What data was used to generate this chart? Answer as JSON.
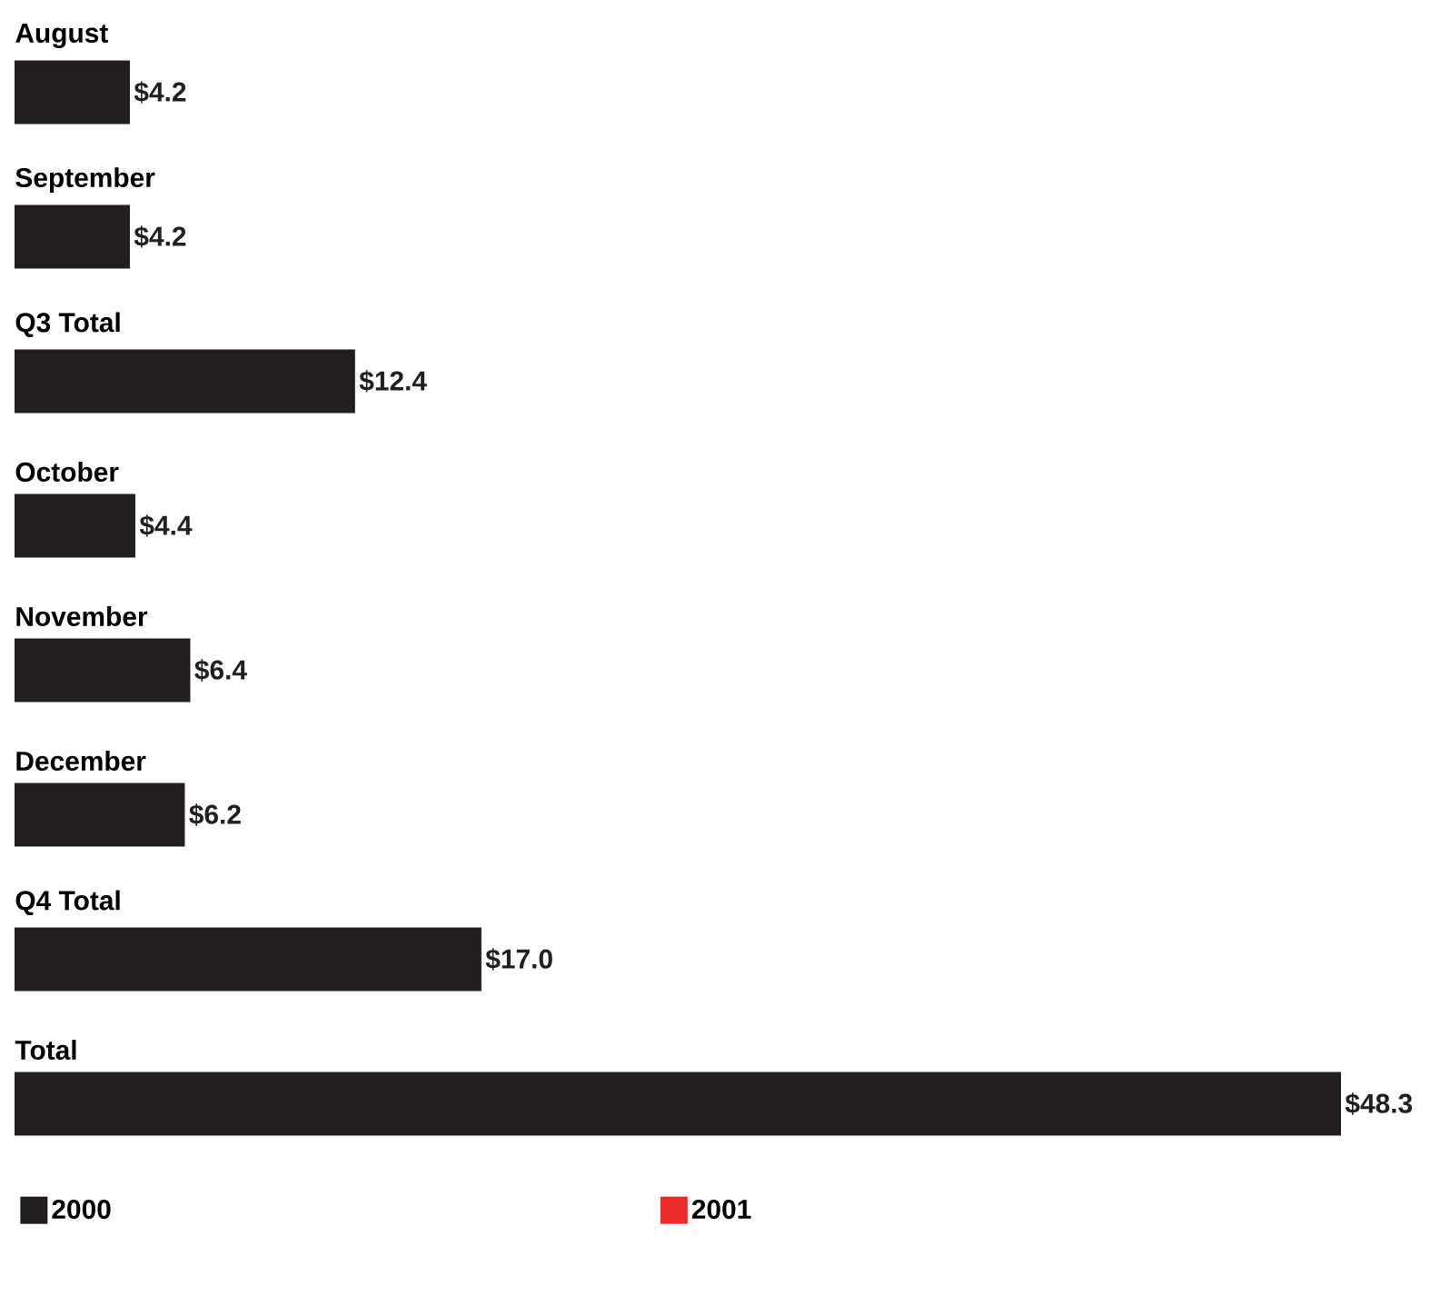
{
  "chart_data": {
    "type": "bar",
    "orientation": "horizontal",
    "categories": [
      "August",
      "September",
      "Q3 Total",
      "October",
      "November",
      "December",
      "Q4 Total",
      "Total"
    ],
    "series": [
      {
        "name": "2000",
        "color": "#231f20",
        "values": [
          4.2,
          4.2,
          12.4,
          4.4,
          6.4,
          6.2,
          17.0,
          48.3
        ],
        "value_labels": [
          "$4.2",
          "$4.2",
          "$12.4",
          "$4.4",
          "$6.4",
          "$6.2",
          "$17.0",
          "$48.3"
        ]
      },
      {
        "name": "2001",
        "color": "#ee2a2a",
        "values": [
          null,
          null,
          null,
          null,
          null,
          null,
          null,
          null
        ]
      }
    ],
    "legend": "bottom"
  }
}
